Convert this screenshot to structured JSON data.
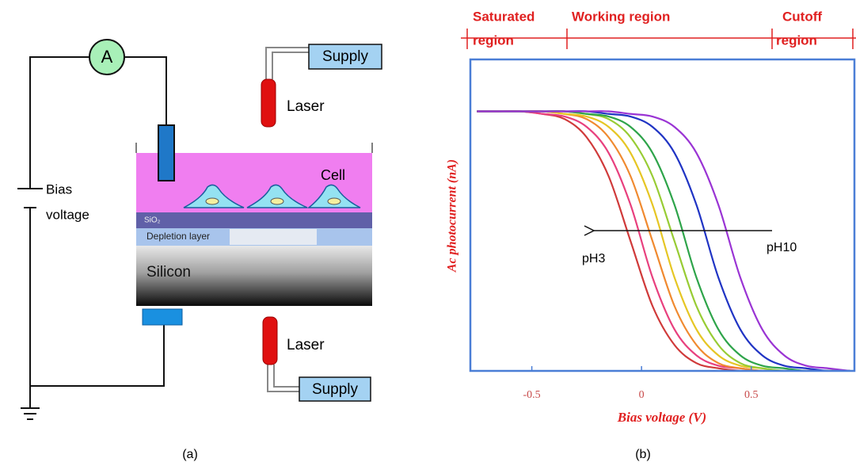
{
  "diagram": {
    "ammeter": "A",
    "supply_top": "Supply",
    "laser_top": "Laser",
    "cell": "Cell",
    "bias_voltage": [
      "Bias",
      "voltage"
    ],
    "sio2": "SiO₂",
    "depletion_layer": "Depletion layer",
    "silicon": "Silicon",
    "laser_bottom": "Laser",
    "supply_bottom": "Supply",
    "caption": "(a)"
  },
  "chart_data": {
    "type": "line",
    "caption": "(b)",
    "xlabel": "Bias voltage (V)",
    "ylabel": "Ac photocurrent (nA)",
    "regions": [
      [
        "Saturated",
        "region"
      ],
      [
        "Working region"
      ],
      [
        "Cutoff",
        "region"
      ]
    ],
    "annotations": [
      "pH3",
      "pH10"
    ],
    "xlim": [
      -0.78,
      0.97
    ],
    "ylim": [
      0,
      1.2
    ],
    "xticks": [
      -0.5,
      0,
      0.5
    ],
    "x": [
      -0.75,
      -0.65,
      -0.55,
      -0.45,
      -0.35,
      -0.25,
      -0.15,
      -0.05,
      0.05,
      0.15,
      0.25,
      0.35,
      0.45,
      0.55,
      0.65,
      0.75,
      0.85,
      0.95
    ],
    "series": [
      {
        "color": "#d03a3a",
        "values": [
          1,
          1,
          1,
          0.99,
          0.97,
          0.9,
          0.75,
          0.5,
          0.25,
          0.1,
          0.03,
          0.01,
          0,
          0,
          0,
          0,
          0,
          0
        ]
      },
      {
        "color": "#e8407e",
        "values": [
          1,
          1,
          1,
          0.99,
          0.98,
          0.94,
          0.84,
          0.64,
          0.36,
          0.16,
          0.06,
          0.02,
          0.01,
          0,
          0,
          0,
          0,
          0
        ]
      },
      {
        "color": "#f08a30",
        "values": [
          1,
          1,
          1,
          1,
          0.99,
          0.97,
          0.9,
          0.75,
          0.5,
          0.25,
          0.1,
          0.03,
          0.01,
          0,
          0,
          0,
          0,
          0
        ]
      },
      {
        "color": "#e6c624",
        "values": [
          1,
          1,
          1,
          1,
          0.99,
          0.98,
          0.94,
          0.84,
          0.64,
          0.36,
          0.16,
          0.06,
          0.02,
          0.01,
          0,
          0,
          0,
          0
        ]
      },
      {
        "color": "#98cc34",
        "values": [
          1,
          1,
          1,
          1,
          1,
          0.99,
          0.97,
          0.9,
          0.75,
          0.5,
          0.25,
          0.1,
          0.03,
          0.01,
          0,
          0,
          0,
          0
        ]
      },
      {
        "color": "#2ea44a",
        "values": [
          1,
          1,
          1,
          1,
          1,
          0.99,
          0.98,
          0.94,
          0.84,
          0.64,
          0.36,
          0.16,
          0.06,
          0.02,
          0.01,
          0,
          0,
          0
        ]
      },
      {
        "color": "#2034c4",
        "values": [
          1,
          1,
          1,
          1,
          1,
          1,
          0.99,
          0.98,
          0.94,
          0.84,
          0.64,
          0.36,
          0.16,
          0.06,
          0.02,
          0.01,
          0,
          0
        ]
      },
      {
        "color": "#9a34d4",
        "values": [
          1,
          1,
          1,
          1,
          1,
          1,
          1,
          0.99,
          0.98,
          0.94,
          0.84,
          0.64,
          0.36,
          0.16,
          0.06,
          0.02,
          0.01,
          0
        ]
      }
    ]
  }
}
